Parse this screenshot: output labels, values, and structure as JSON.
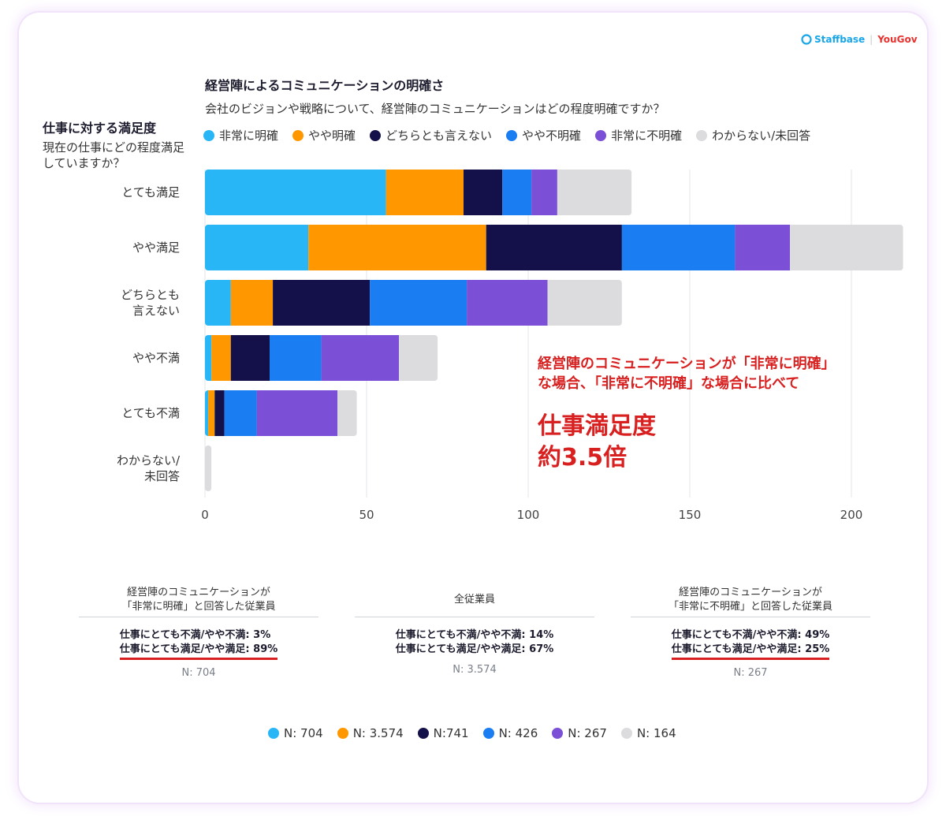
{
  "logo": {
    "staffbase": "Staffbase",
    "yougov": "YouGov"
  },
  "colors": {
    "very_clear": "#29b6f6",
    "somewhat_clear": "#ff9800",
    "neutral": "#13104a",
    "somewhat_unclear": "#1a7ef2",
    "very_unclear": "#7b4fd6",
    "unknown": "#dcdcdf",
    "annotation": "#d7201f"
  },
  "chart_data": {
    "type": "bar",
    "orientation": "horizontal",
    "stacked": true,
    "title": "経営陣によるコミュニケーションの明確さ",
    "subtitle": "会社のビジョンや戦略について、経営陣のコミュニケーションはどの程度明確ですか？",
    "ytitle": "仕事に対する満足度",
    "ysubtitle": "現在の仕事にどの程度満足していますか？",
    "categories": [
      "とても満足",
      "やや満足",
      "どちらとも言えない",
      "やや不満",
      "とても不満",
      "わからない/未回答"
    ],
    "category_lines": [
      [
        "とても満足"
      ],
      [
        "やや満足"
      ],
      [
        "どちらとも",
        "言えない"
      ],
      [
        "やや不満"
      ],
      [
        "とても不満"
      ],
      [
        "わからない/",
        "未回答"
      ]
    ],
    "series": [
      {
        "name": "非常に明確",
        "color": "#29b6f6",
        "values": [
          56,
          32,
          8,
          2,
          1,
          0
        ]
      },
      {
        "name": "やや明確",
        "color": "#ff9800",
        "values": [
          24,
          55,
          13,
          6,
          2,
          0
        ]
      },
      {
        "name": "どちらとも言えない",
        "color": "#13104a",
        "values": [
          12,
          42,
          30,
          12,
          3,
          0
        ]
      },
      {
        "name": "やや不明確",
        "color": "#1a7ef2",
        "values": [
          9,
          35,
          30,
          16,
          10,
          0
        ]
      },
      {
        "name": "非常に不明確",
        "color": "#7b4fd6",
        "values": [
          8,
          17,
          25,
          24,
          25,
          0
        ]
      },
      {
        "name": "わからない/未回答",
        "color": "#dcdcdf",
        "values": [
          23,
          35,
          23,
          12,
          6,
          2
        ]
      }
    ],
    "xlim": [
      0,
      215
    ],
    "xticks": [
      0,
      50,
      100,
      150,
      200
    ],
    "grid": true
  },
  "annotation": {
    "line1": "経営陣のコミュニケーションが「非常に明確」",
    "line2": "な場合、「非常に不明確」な場合に比べて",
    "big1": "仕事満足度",
    "big2": "約3.5倍"
  },
  "panels": [
    {
      "header1": "経営陣のコミュニケーションが",
      "header2": "「非常に明確」と回答した従業員",
      "stat1": "仕事にとても不満/やや不満: 3%",
      "stat2": "仕事にとても満足/やや満足: 89%",
      "n": "N: 704"
    },
    {
      "header1": "全従業員",
      "header2": "",
      "stat1": "仕事にとても不満/やや不満: 14%",
      "stat2": "仕事にとても満足/やや満足: 67%",
      "n": "N: 3.574"
    },
    {
      "header1": "経営陣のコミュニケーションが",
      "header2": "「非常に不明確」と回答した従業員",
      "stat1": "仕事にとても不満/やや不満: 49%",
      "stat2": "仕事にとても満足/やや満足: 25%",
      "n": "N: 267"
    }
  ],
  "n_legend": [
    {
      "label": "N: 704",
      "color": "#29b6f6"
    },
    {
      "label": "N: 3.574",
      "color": "#ff9800"
    },
    {
      "label": "N:741",
      "color": "#13104a"
    },
    {
      "label": "N: 426",
      "color": "#1a7ef2"
    },
    {
      "label": "N: 267",
      "color": "#7b4fd6"
    },
    {
      "label": "N: 164",
      "color": "#dcdcdf"
    }
  ]
}
